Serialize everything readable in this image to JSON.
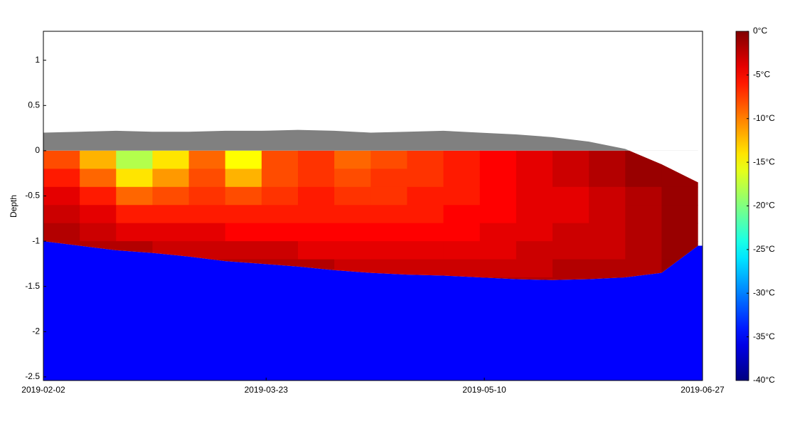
{
  "chart_data": {
    "type": "heatmap",
    "y_label": "Depth",
    "xlim": [
      "2019-02-02",
      "2019-06-27"
    ],
    "xticks": [
      "2019-02-02",
      "2019-03-23",
      "2019-05-10",
      "2019-06-27"
    ],
    "ylim": [
      -2.54,
      1.32
    ],
    "yticks": [
      -2.5,
      -2,
      -1.5,
      -1,
      -0.5,
      0,
      0.5,
      1
    ],
    "x": [
      "2019-02-02",
      "2019-02-10",
      "2019-02-18",
      "2019-02-26",
      "2019-03-06",
      "2019-03-14",
      "2019-03-22",
      "2019-03-30",
      "2019-04-07",
      "2019-04-15",
      "2019-04-23",
      "2019-05-01",
      "2019-05-09",
      "2019-05-17",
      "2019-05-25",
      "2019-06-02",
      "2019-06-10",
      "2019-06-18",
      "2019-06-26"
    ],
    "surface": [
      0.2,
      0.21,
      0.22,
      0.21,
      0.21,
      0.22,
      0.22,
      0.23,
      0.22,
      0.2,
      0.21,
      0.22,
      0.2,
      0.18,
      0.15,
      0.1,
      0.02,
      -0.15,
      -0.35
    ],
    "ice_bottom": [
      -1.0,
      -1.05,
      -1.1,
      -1.13,
      -1.17,
      -1.22,
      -1.25,
      -1.28,
      -1.32,
      -1.35,
      -1.37,
      -1.38,
      -1.4,
      -1.42,
      -1.43,
      -1.42,
      -1.4,
      -1.35,
      -1.05
    ],
    "depths": [
      0,
      -0.2,
      -0.4,
      -0.6,
      -0.8,
      -1.0,
      -1.2,
      -1.4
    ],
    "temperature": [
      [
        -8,
        -6,
        -4,
        -3,
        -2,
        -2,
        -2,
        -2
      ],
      [
        -12,
        -9,
        -6,
        -4,
        -3,
        -2,
        -2,
        -2
      ],
      [
        -18,
        -14,
        -9,
        -6,
        -4,
        -2,
        -2,
        -2
      ],
      [
        -14,
        -11,
        -8,
        -6,
        -4,
        -3,
        -2,
        -2
      ],
      [
        -9,
        -8,
        -7,
        -6,
        -4,
        -3,
        -2,
        -2
      ],
      [
        -15,
        -12,
        -8,
        -6,
        -5,
        -3,
        -2,
        -2
      ],
      [
        -8,
        -8,
        -7,
        -6,
        -5,
        -3,
        -2,
        -2
      ],
      [
        -7,
        -7,
        -6,
        -6,
        -5,
        -4,
        -2,
        -2
      ],
      [
        -9,
        -8,
        -7,
        -6,
        -5,
        -4,
        -3,
        -2
      ],
      [
        -8,
        -7,
        -7,
        -6,
        -5,
        -4,
        -3,
        -2
      ],
      [
        -7,
        -7,
        -6,
        -6,
        -5,
        -4,
        -3,
        -2
      ],
      [
        -6,
        -6,
        -6,
        -5,
        -5,
        -4,
        -3,
        -2
      ],
      [
        -5,
        -5,
        -5,
        -5,
        -4,
        -4,
        -3,
        -2
      ],
      [
        -4,
        -4,
        -4,
        -4,
        -4,
        -3,
        -3,
        -2
      ],
      [
        -3,
        -3,
        -4,
        -4,
        -3,
        -3,
        -2,
        -2
      ],
      [
        -2,
        -2,
        -3,
        -3,
        -3,
        -3,
        -2,
        -2
      ],
      [
        -1,
        -1,
        -2,
        -2,
        -2,
        -2,
        -2,
        -2
      ],
      [
        -1,
        -1,
        -1,
        -1,
        -1,
        -1,
        -1,
        -1
      ],
      [
        -1,
        -1,
        -1,
        -1,
        -1,
        -1,
        -1,
        -1
      ]
    ],
    "snow_color": "#808080",
    "water_color": "#0000ff",
    "clim": [
      -40,
      0
    ],
    "cticks": [
      {
        "value": 0,
        "label": "0°C"
      },
      {
        "value": -5,
        "label": "-5°C"
      },
      {
        "value": -10,
        "label": "-10°C"
      },
      {
        "value": -15,
        "label": "-15°C"
      },
      {
        "value": -20,
        "label": "-20°C"
      },
      {
        "value": -25,
        "label": "-25°C"
      },
      {
        "value": -30,
        "label": "-30°C"
      },
      {
        "value": -35,
        "label": "-35°C"
      },
      {
        "value": -40,
        "label": "-40°C"
      }
    ]
  }
}
